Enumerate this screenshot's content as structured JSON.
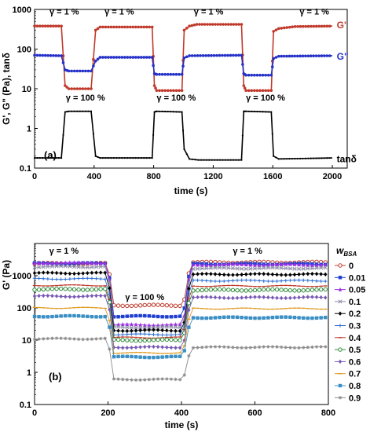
{
  "chart_data": [
    {
      "type": "line",
      "panel_label": "(a)",
      "xlabel": "time (s)",
      "ylabel": "G', G\" (Pa), tanδ",
      "xlim": [
        0,
        2100
      ],
      "ylim": [
        0.1,
        1000
      ],
      "yscale": "log",
      "x_ticks": [
        0,
        400,
        800,
        1200,
        1600,
        2000
      ],
      "y_ticks": [
        0.1,
        1,
        10,
        100,
        1000
      ],
      "grid": false,
      "annotations": [
        {
          "text": "γ = 1 %",
          "x": 100,
          "y": 900
        },
        {
          "text": "γ = 1 %",
          "x": 470,
          "y": 900
        },
        {
          "text": "γ = 1 %",
          "x": 1070,
          "y": 900
        },
        {
          "text": "γ = 1 %",
          "x": 1780,
          "y": 900
        },
        {
          "text": "γ = 100 %",
          "x": 210,
          "y": 6
        },
        {
          "text": "γ = 100 %",
          "x": 820,
          "y": 6
        },
        {
          "text": "γ = 100 %",
          "x": 1420,
          "y": 6
        }
      ],
      "series": [
        {
          "name": "G'",
          "color": "#c0392b",
          "label_at": [
            2040,
            400
          ],
          "x": [
            0,
            180,
            205,
            230,
            380,
            410,
            440,
            790,
            805,
            820,
            990,
            1005,
            1040,
            1090,
            1390,
            1405,
            1420,
            1590,
            1605,
            1640,
            1750,
            2000
          ],
          "y": [
            380,
            380,
            12,
            10,
            10,
            300,
            360,
            360,
            12,
            9,
            9,
            300,
            380,
            420,
            420,
            12,
            9,
            9,
            280,
            330,
            370,
            380
          ]
        },
        {
          "name": "G\"",
          "color": "#2430c8",
          "label_at": [
            2040,
            65
          ],
          "x": [
            0,
            180,
            205,
            230,
            380,
            410,
            440,
            790,
            805,
            820,
            990,
            1005,
            1040,
            1390,
            1405,
            1420,
            1590,
            1605,
            1640,
            2000
          ],
          "y": [
            70,
            68,
            30,
            28,
            28,
            50,
            62,
            62,
            24,
            23,
            23,
            60,
            68,
            70,
            24,
            22,
            22,
            58,
            66,
            68
          ]
        },
        {
          "name": "tanδ",
          "color": "#000000",
          "label_at": [
            2040,
            0.17
          ],
          "x": [
            0,
            180,
            205,
            230,
            380,
            410,
            440,
            790,
            805,
            820,
            990,
            1005,
            1040,
            1100,
            1390,
            1405,
            1420,
            1590,
            1605,
            1640,
            2000
          ],
          "y": [
            0.18,
            0.18,
            2.6,
            2.7,
            2.7,
            0.2,
            0.18,
            0.18,
            2.6,
            2.7,
            2.6,
            0.3,
            0.17,
            0.16,
            0.16,
            2.7,
            2.7,
            2.6,
            0.2,
            0.17,
            0.18
          ]
        }
      ]
    },
    {
      "type": "line",
      "panel_label": "(b)",
      "xlabel": "time (s)",
      "ylabel": "G' (Pa)",
      "xlim": [
        0,
        800
      ],
      "ylim": [
        0.1,
        10000
      ],
      "yscale": "log",
      "x_ticks": [
        0,
        200,
        400,
        600,
        800
      ],
      "y_ticks": [
        0.1,
        1,
        10,
        100,
        1000
      ],
      "grid": false,
      "legend": {
        "title": "w",
        "title_sub": "BSA",
        "position": "right"
      },
      "annotations": [
        {
          "text": "γ = 1 %",
          "x": 80,
          "y": 6000
        },
        {
          "text": "γ = 100 %",
          "x": 300,
          "y": 220
        },
        {
          "text": "γ = 1 %",
          "x": 580,
          "y": 6000
        }
      ],
      "series": [
        {
          "name": "0",
          "color": "#c0392b",
          "marker": "circle-open",
          "before": 2400,
          "during": 120,
          "after": 2600
        },
        {
          "name": "0.01",
          "color": "#1f3fd1",
          "marker": "square",
          "before": 2400,
          "during": 55,
          "after": 2300
        },
        {
          "name": "0.05",
          "color": "#9b30e6",
          "marker": "triangle",
          "before": 2500,
          "during": 30,
          "after": 2200
        },
        {
          "name": "0.1",
          "color": "#8e8ea8",
          "marker": "x",
          "before": 1900,
          "during": 25,
          "after": 1700
        },
        {
          "name": "0.2",
          "color": "#000000",
          "marker": "diamond",
          "before": 1200,
          "during": 20,
          "after": 1100
        },
        {
          "name": "0.3",
          "color": "#2e6fd6",
          "marker": "plus",
          "before": 800,
          "during": 15,
          "after": 700
        },
        {
          "name": "0.4",
          "color": "#c0392b",
          "marker": "line",
          "before": 500,
          "during": 12,
          "after": 480
        },
        {
          "name": "0.5",
          "color": "#2e8b3a",
          "marker": "circle-open",
          "before": 380,
          "during": 10,
          "after": 360
        },
        {
          "name": "0.6",
          "color": "#7a5ab5",
          "marker": "diamond",
          "before": 230,
          "during": 6,
          "after": 210
        },
        {
          "name": "0.7",
          "color": "#e09a20",
          "marker": "line",
          "before": 100,
          "during": 4,
          "after": 95
        },
        {
          "name": "0.8",
          "color": "#3b8fc4",
          "marker": "square",
          "before": 55,
          "during": 3,
          "after": 50
        },
        {
          "name": "0.9",
          "color": "#8a8a8a",
          "marker": "star",
          "before": 11,
          "during": 0.6,
          "after": 6
        }
      ]
    }
  ]
}
